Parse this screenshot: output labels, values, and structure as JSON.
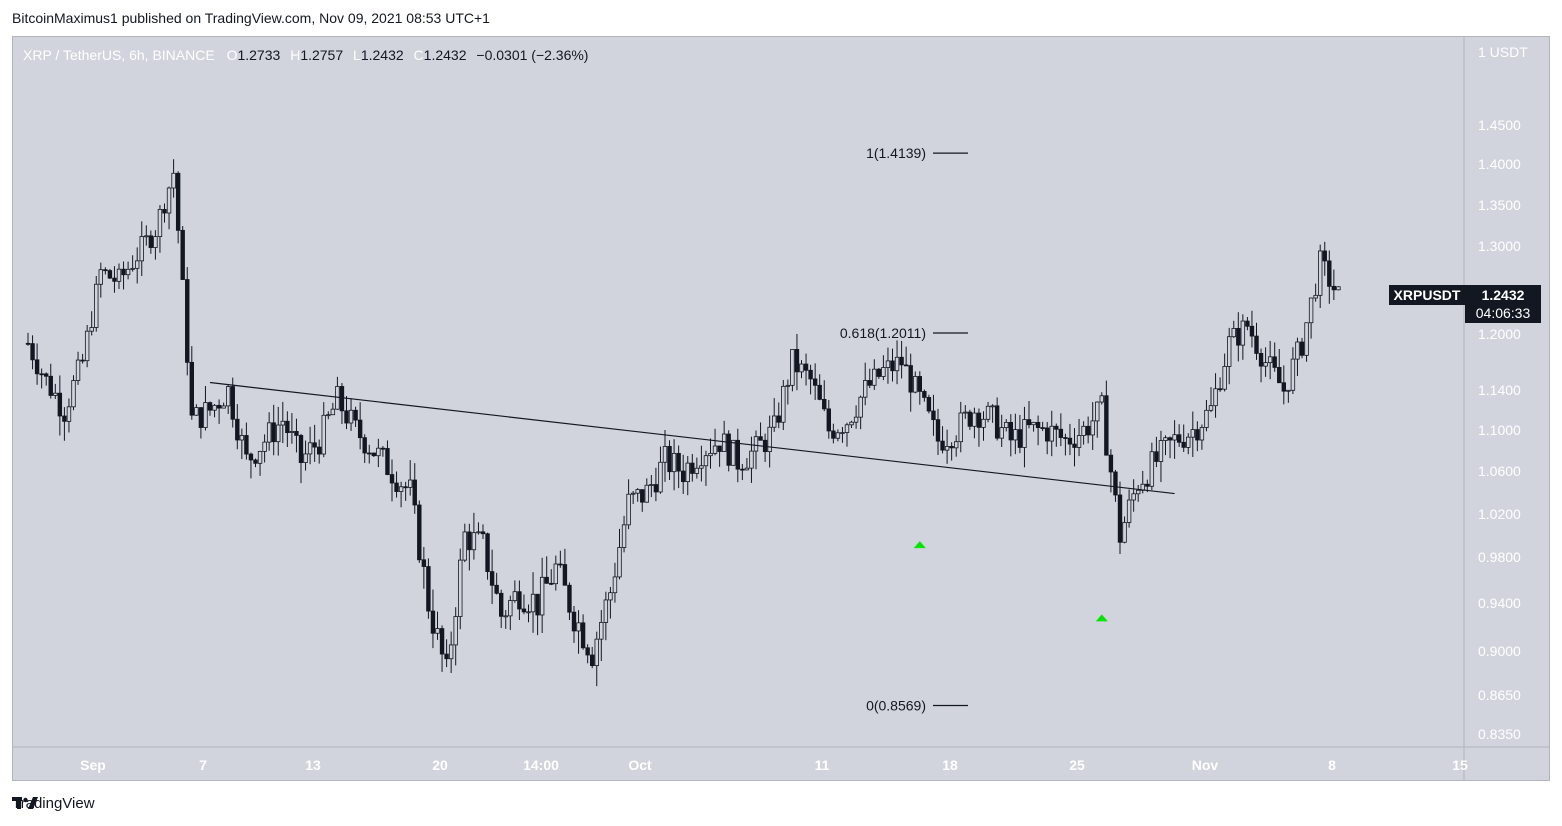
{
  "header": {
    "publisher": "BitcoinMaximus1 published on TradingView.com, Nov 09, 2021 08:53 UTC+1"
  },
  "legend": {
    "symbol": "XRP / TetherUS, 6h, BINANCE",
    "o_label": "O",
    "o_value": "1.2733",
    "h_label": "H",
    "h_value": "1.2757",
    "l_label": "L",
    "l_value": "1.2432",
    "c_label": "C",
    "c_value": "1.2432",
    "change": "−0.0301 (−2.36%)"
  },
  "price_scale": {
    "currency": "1 USDT",
    "ticks": [
      "1.4500",
      "1.4000",
      "1.3500",
      "1.3000",
      "1.2000",
      "1.1400",
      "1.1000",
      "1.0600",
      "1.0200",
      "0.9800",
      "0.9400",
      "0.9000",
      "0.8650",
      "0.8350"
    ]
  },
  "price_tag": {
    "symbol": "XRPUSDT",
    "price": "1.2432",
    "countdown": "04:06:33"
  },
  "time_scale": {
    "ticks": [
      "Sep",
      "7",
      "13",
      "20",
      "14:00",
      "Oct",
      "11",
      "18",
      "25",
      "Nov",
      "8",
      "15"
    ]
  },
  "fib_levels": [
    {
      "label": "1(1.4139)",
      "value": 1.4139
    },
    {
      "label": "0.618(1.2011)",
      "value": 1.2011
    },
    {
      "label": "0(0.8569)",
      "value": 0.8569
    }
  ],
  "footer": {
    "brand": "TradingView"
  },
  "colors": {
    "background": "#d1d4dc",
    "candle": "#131722",
    "marker": "#00e600",
    "tag": "#131722"
  },
  "chart_data": {
    "type": "candlestick",
    "symbol": "XRP / TetherUS",
    "interval": "6h",
    "exchange": "BINANCE",
    "x_range": [
      "2021-08-29",
      "2021-11-15"
    ],
    "ylim": [
      0.83,
      1.47
    ],
    "grid": false,
    "close_path": [
      [
        "2021-08-29",
        1.19
      ],
      [
        "2021-08-30",
        1.15
      ],
      [
        "2021-08-31",
        1.12
      ],
      [
        "2021-09-01",
        1.17
      ],
      [
        "2021-09-02",
        1.27
      ],
      [
        "2021-09-03",
        1.26
      ],
      [
        "2021-09-04",
        1.29
      ],
      [
        "2021-09-05",
        1.32
      ],
      [
        "2021-09-06",
        1.39
      ],
      [
        "2021-09-07",
        1.11
      ],
      [
        "2021-09-08",
        1.12
      ],
      [
        "2021-09-09",
        1.14
      ],
      [
        "2021-09-10",
        1.07
      ],
      [
        "2021-09-11",
        1.09
      ],
      [
        "2021-09-12",
        1.11
      ],
      [
        "2021-09-13",
        1.07
      ],
      [
        "2021-09-14",
        1.09
      ],
      [
        "2021-09-15",
        1.13
      ],
      [
        "2021-09-16",
        1.1
      ],
      [
        "2021-09-17",
        1.08
      ],
      [
        "2021-09-18",
        1.06
      ],
      [
        "2021-09-19",
        1.04
      ],
      [
        "2021-09-20",
        0.94
      ],
      [
        "2021-09-21",
        0.88
      ],
      [
        "2021-09-22",
        1.0
      ],
      [
        "2021-09-23",
        0.99
      ],
      [
        "2021-09-24",
        0.93
      ],
      [
        "2021-09-25",
        0.95
      ],
      [
        "2021-09-26",
        0.94
      ],
      [
        "2021-09-27",
        0.97
      ],
      [
        "2021-09-28",
        0.93
      ],
      [
        "2021-09-29",
        0.9
      ],
      [
        "2021-09-30",
        0.95
      ],
      [
        "2021-10-01",
        1.03
      ],
      [
        "2021-10-02",
        1.04
      ],
      [
        "2021-10-03",
        1.07
      ],
      [
        "2021-10-04",
        1.06
      ],
      [
        "2021-10-05",
        1.08
      ],
      [
        "2021-10-06",
        1.09
      ],
      [
        "2021-10-07",
        1.07
      ],
      [
        "2021-10-08",
        1.08
      ],
      [
        "2021-10-09",
        1.1
      ],
      [
        "2021-10-10",
        1.17
      ],
      [
        "2021-10-11",
        1.15
      ],
      [
        "2021-10-12",
        1.1
      ],
      [
        "2021-10-13",
        1.11
      ],
      [
        "2021-10-14",
        1.14
      ],
      [
        "2021-10-15",
        1.16
      ],
      [
        "2021-10-16",
        1.17
      ],
      [
        "2021-10-17",
        1.13
      ],
      [
        "2021-10-18",
        1.09
      ],
      [
        "2021-10-19",
        1.1
      ],
      [
        "2021-10-20",
        1.12
      ],
      [
        "2021-10-21",
        1.11
      ],
      [
        "2021-10-22",
        1.09
      ],
      [
        "2021-10-23",
        1.1
      ],
      [
        "2021-10-24",
        1.1
      ],
      [
        "2021-10-25",
        1.09
      ],
      [
        "2021-10-26",
        1.1
      ],
      [
        "2021-10-27",
        1.12
      ],
      [
        "2021-10-28",
        1.0
      ],
      [
        "2021-10-29",
        1.05
      ],
      [
        "2021-10-30",
        1.07
      ],
      [
        "2021-10-31",
        1.09
      ],
      [
        "2021-11-01",
        1.1
      ],
      [
        "2021-11-02",
        1.12
      ],
      [
        "2021-11-03",
        1.19
      ],
      [
        "2021-11-04",
        1.21
      ],
      [
        "2021-11-05",
        1.17
      ],
      [
        "2021-11-06",
        1.14
      ],
      [
        "2021-11-07",
        1.19
      ],
      [
        "2021-11-08",
        1.28
      ],
      [
        "2021-11-09",
        1.2432
      ]
    ],
    "trendline": {
      "start": [
        "2021-09-08",
        1.148
      ],
      "end": [
        "2021-10-31",
        1.039
      ]
    },
    "support_markers": [
      [
        "2021-10-17",
        0.992
      ],
      [
        "2021-10-27",
        0.928
      ]
    ]
  }
}
